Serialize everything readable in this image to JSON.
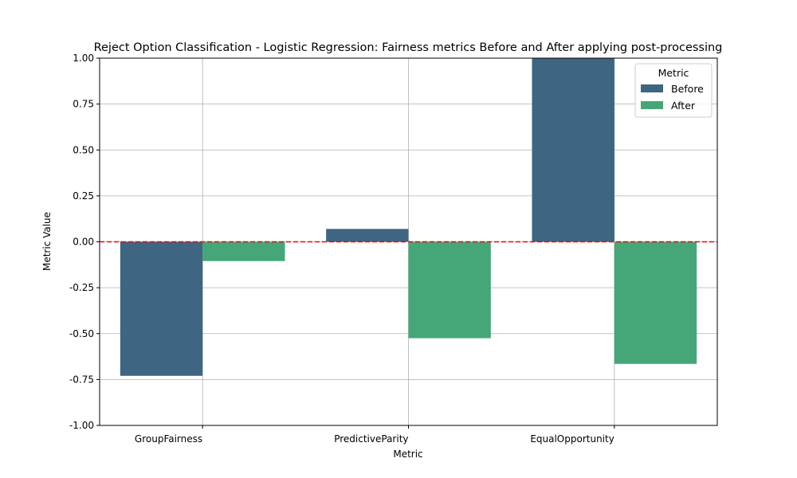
{
  "chart_data": {
    "type": "bar",
    "title": "Reject Option Classification - Logistic Regression: Fairness metrics Before and After applying post-processing",
    "xlabel": "Metric",
    "ylabel": "Metric Value",
    "categories": [
      "GroupFairness",
      "PredictiveParity",
      "EqualOpportunity"
    ],
    "series": [
      {
        "name": "Before",
        "color": "#3e6581",
        "values": [
          -0.73,
          0.07,
          1.0
        ]
      },
      {
        "name": "After",
        "color": "#45a777",
        "values": [
          -0.105,
          -0.525,
          -0.665
        ]
      }
    ],
    "ylim": [
      -1.0,
      1.0
    ],
    "yticks": [
      "-1.00",
      "-0.75",
      "-0.50",
      "-0.25",
      "0.00",
      "0.25",
      "0.50",
      "0.75",
      "1.00"
    ],
    "grid": true,
    "reference_line": {
      "y": 0,
      "color": "#ff0000",
      "style": "dashed"
    },
    "legend": {
      "title": "Metric",
      "position": "top-right"
    }
  }
}
